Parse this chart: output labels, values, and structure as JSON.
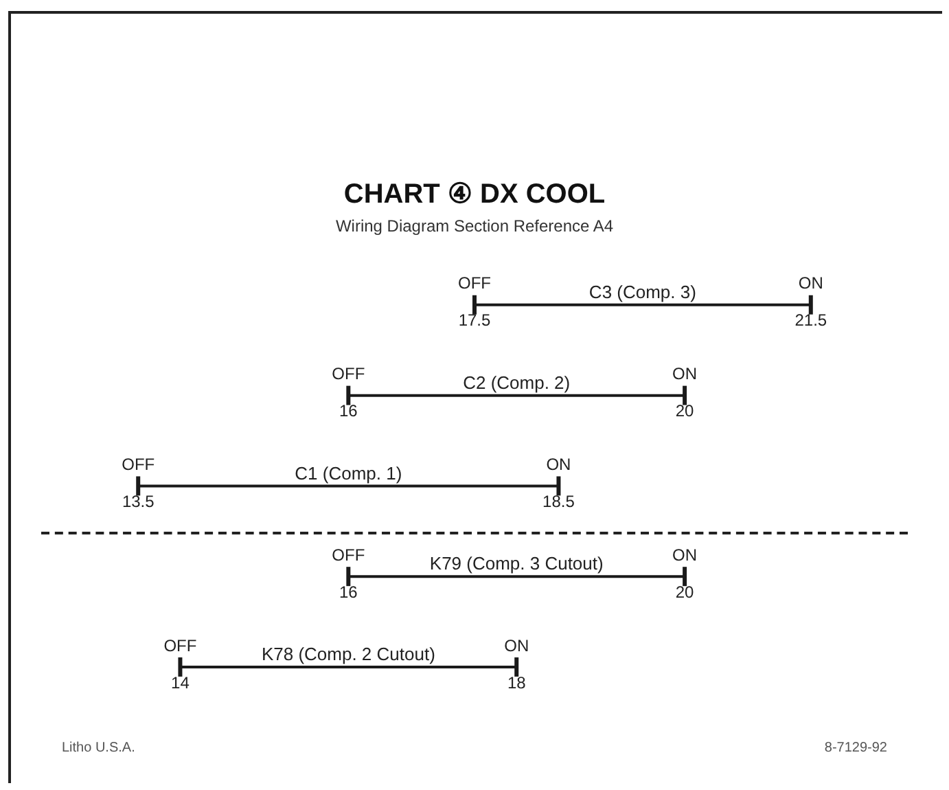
{
  "chart_data": {
    "type": "other",
    "title": "CHART ④ DX COOL",
    "subtitle": "Wiring Diagram Section Reference A4",
    "categories": [
      "C3 (Comp. 3)",
      "C2 (Comp. 2)",
      "C1 (Comp. 1)",
      "K79 (Comp. 3 Cutout)",
      "K78 (Comp. 2 Cutout)"
    ],
    "series": [
      {
        "name": "OFF",
        "color": "#1a1a1a",
        "values": [
          17.5,
          16,
          13.5,
          16,
          14
        ]
      },
      {
        "name": "ON",
        "color": "#1a1a1a",
        "values": [
          21.5,
          20,
          18.5,
          20,
          18
        ]
      }
    ],
    "data_labels": true,
    "annotations": [
      "Litho U.S.A.",
      "8-7129-92"
    ]
  }
}
